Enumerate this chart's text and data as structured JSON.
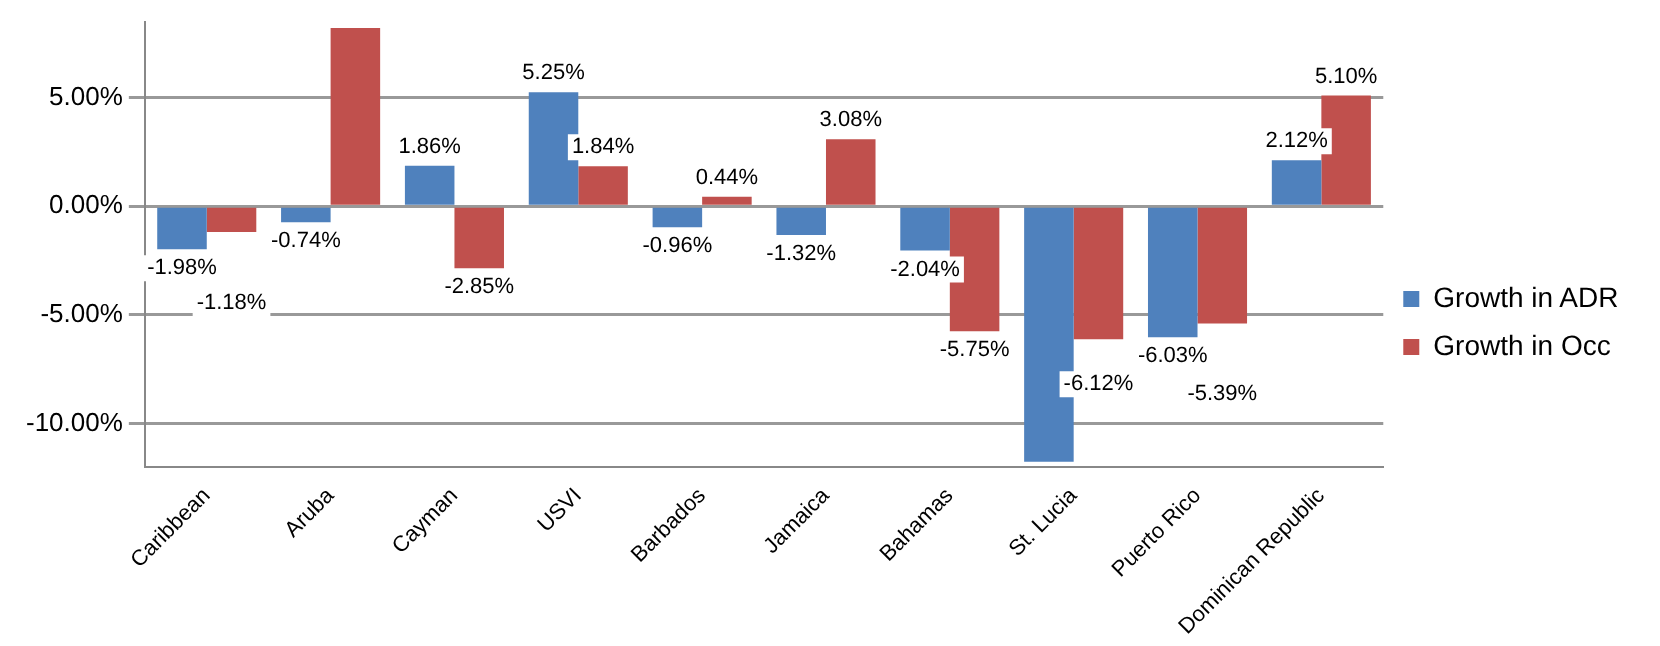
{
  "chart_data": {
    "type": "bar",
    "categories": [
      "Caribbean",
      "Aruba",
      "Cayman",
      "USVI",
      "Barbados",
      "Jamaica",
      "Bahamas",
      "St. Lucia",
      "Puerto Rico",
      "Dominican Republic"
    ],
    "series": [
      {
        "name": "Growth in ADR",
        "color": "#4f81bd",
        "values": [
          -1.98,
          -0.74,
          1.86,
          5.25,
          -0.96,
          -1.32,
          -2.04,
          -11.76,
          -6.03,
          2.12
        ],
        "value_labels": [
          "-1.98%",
          "-0.74%",
          "1.86%",
          "5.25%",
          "-0.96%",
          "-1.32%",
          "-2.04%",
          null,
          "-6.03%",
          "2.12%"
        ]
      },
      {
        "name": "Growth in Occ",
        "color": "#c0504d",
        "values": [
          -1.18,
          8.2,
          -2.85,
          1.84,
          0.44,
          3.08,
          -5.75,
          -6.12,
          -5.39,
          5.1
        ],
        "value_labels": [
          "-1.18%",
          null,
          "-2.85%",
          "1.84%",
          "0.44%",
          "3.08%",
          "-5.75%",
          "-6.12%",
          "-5.39%",
          "5.10%"
        ]
      }
    ],
    "ylim": [
      -12,
      8.5
    ],
    "yticks": [
      {
        "value": -10,
        "label": "-10.00%"
      },
      {
        "value": -5,
        "label": "-5.00%"
      },
      {
        "value": 0,
        "label": "0.00%"
      },
      {
        "value": 5,
        "label": "5.00%"
      }
    ],
    "grid": "y",
    "legend": "right"
  }
}
